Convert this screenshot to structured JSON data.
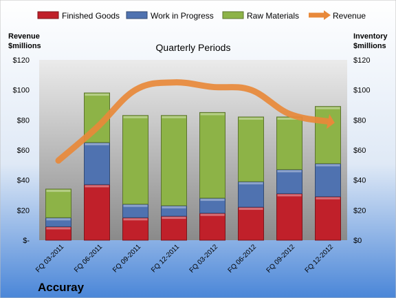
{
  "chart_data": {
    "type": "bar",
    "title": "Quarterly Periods",
    "company": "Accuray",
    "ylabel_left": [
      "Revenue",
      "$millions"
    ],
    "ylabel_right": [
      "Inventory",
      "$millions"
    ],
    "ylim": [
      0,
      120
    ],
    "yticks": [
      0,
      20,
      40,
      60,
      80,
      100,
      120
    ],
    "ytick_labels_left": [
      "$-",
      "$20",
      "$40",
      "$60",
      "$80",
      "$100",
      "$120"
    ],
    "ytick_labels_right": [
      "$0",
      "$20",
      "$40",
      "$60",
      "$80",
      "$100",
      "$120"
    ],
    "categories": [
      "FQ 03-2011",
      "FQ 06-2011",
      "FQ 09-2011",
      "FQ 12-2011",
      "FQ 03-2012",
      "FQ 06-2012",
      "FQ 09-2012",
      "FQ 12-2012"
    ],
    "stacked": true,
    "series": [
      {
        "name": "Finished Goods",
        "color": "#c0202a",
        "values": [
          9,
          37,
          15,
          16,
          18,
          22,
          31,
          29
        ]
      },
      {
        "name": "Work in Progress",
        "color": "#4f72b0",
        "values": [
          6,
          28,
          9,
          7,
          10,
          17,
          16,
          22
        ]
      },
      {
        "name": "Raw Materials",
        "color": "#8db347",
        "values": [
          19,
          33,
          59,
          60,
          57,
          43,
          35,
          38
        ]
      }
    ],
    "line_series": {
      "name": "Revenue",
      "color": "#e8893a",
      "values": [
        53,
        75,
        100,
        105,
        102,
        100,
        84,
        79
      ]
    },
    "legend_position": "top",
    "grid": false
  },
  "colors": {
    "background_top": "#ffffff",
    "background_bottom": "#4a86d8",
    "plot_top": "#e8e8e8",
    "plot_bottom": "#8c8c8c"
  }
}
